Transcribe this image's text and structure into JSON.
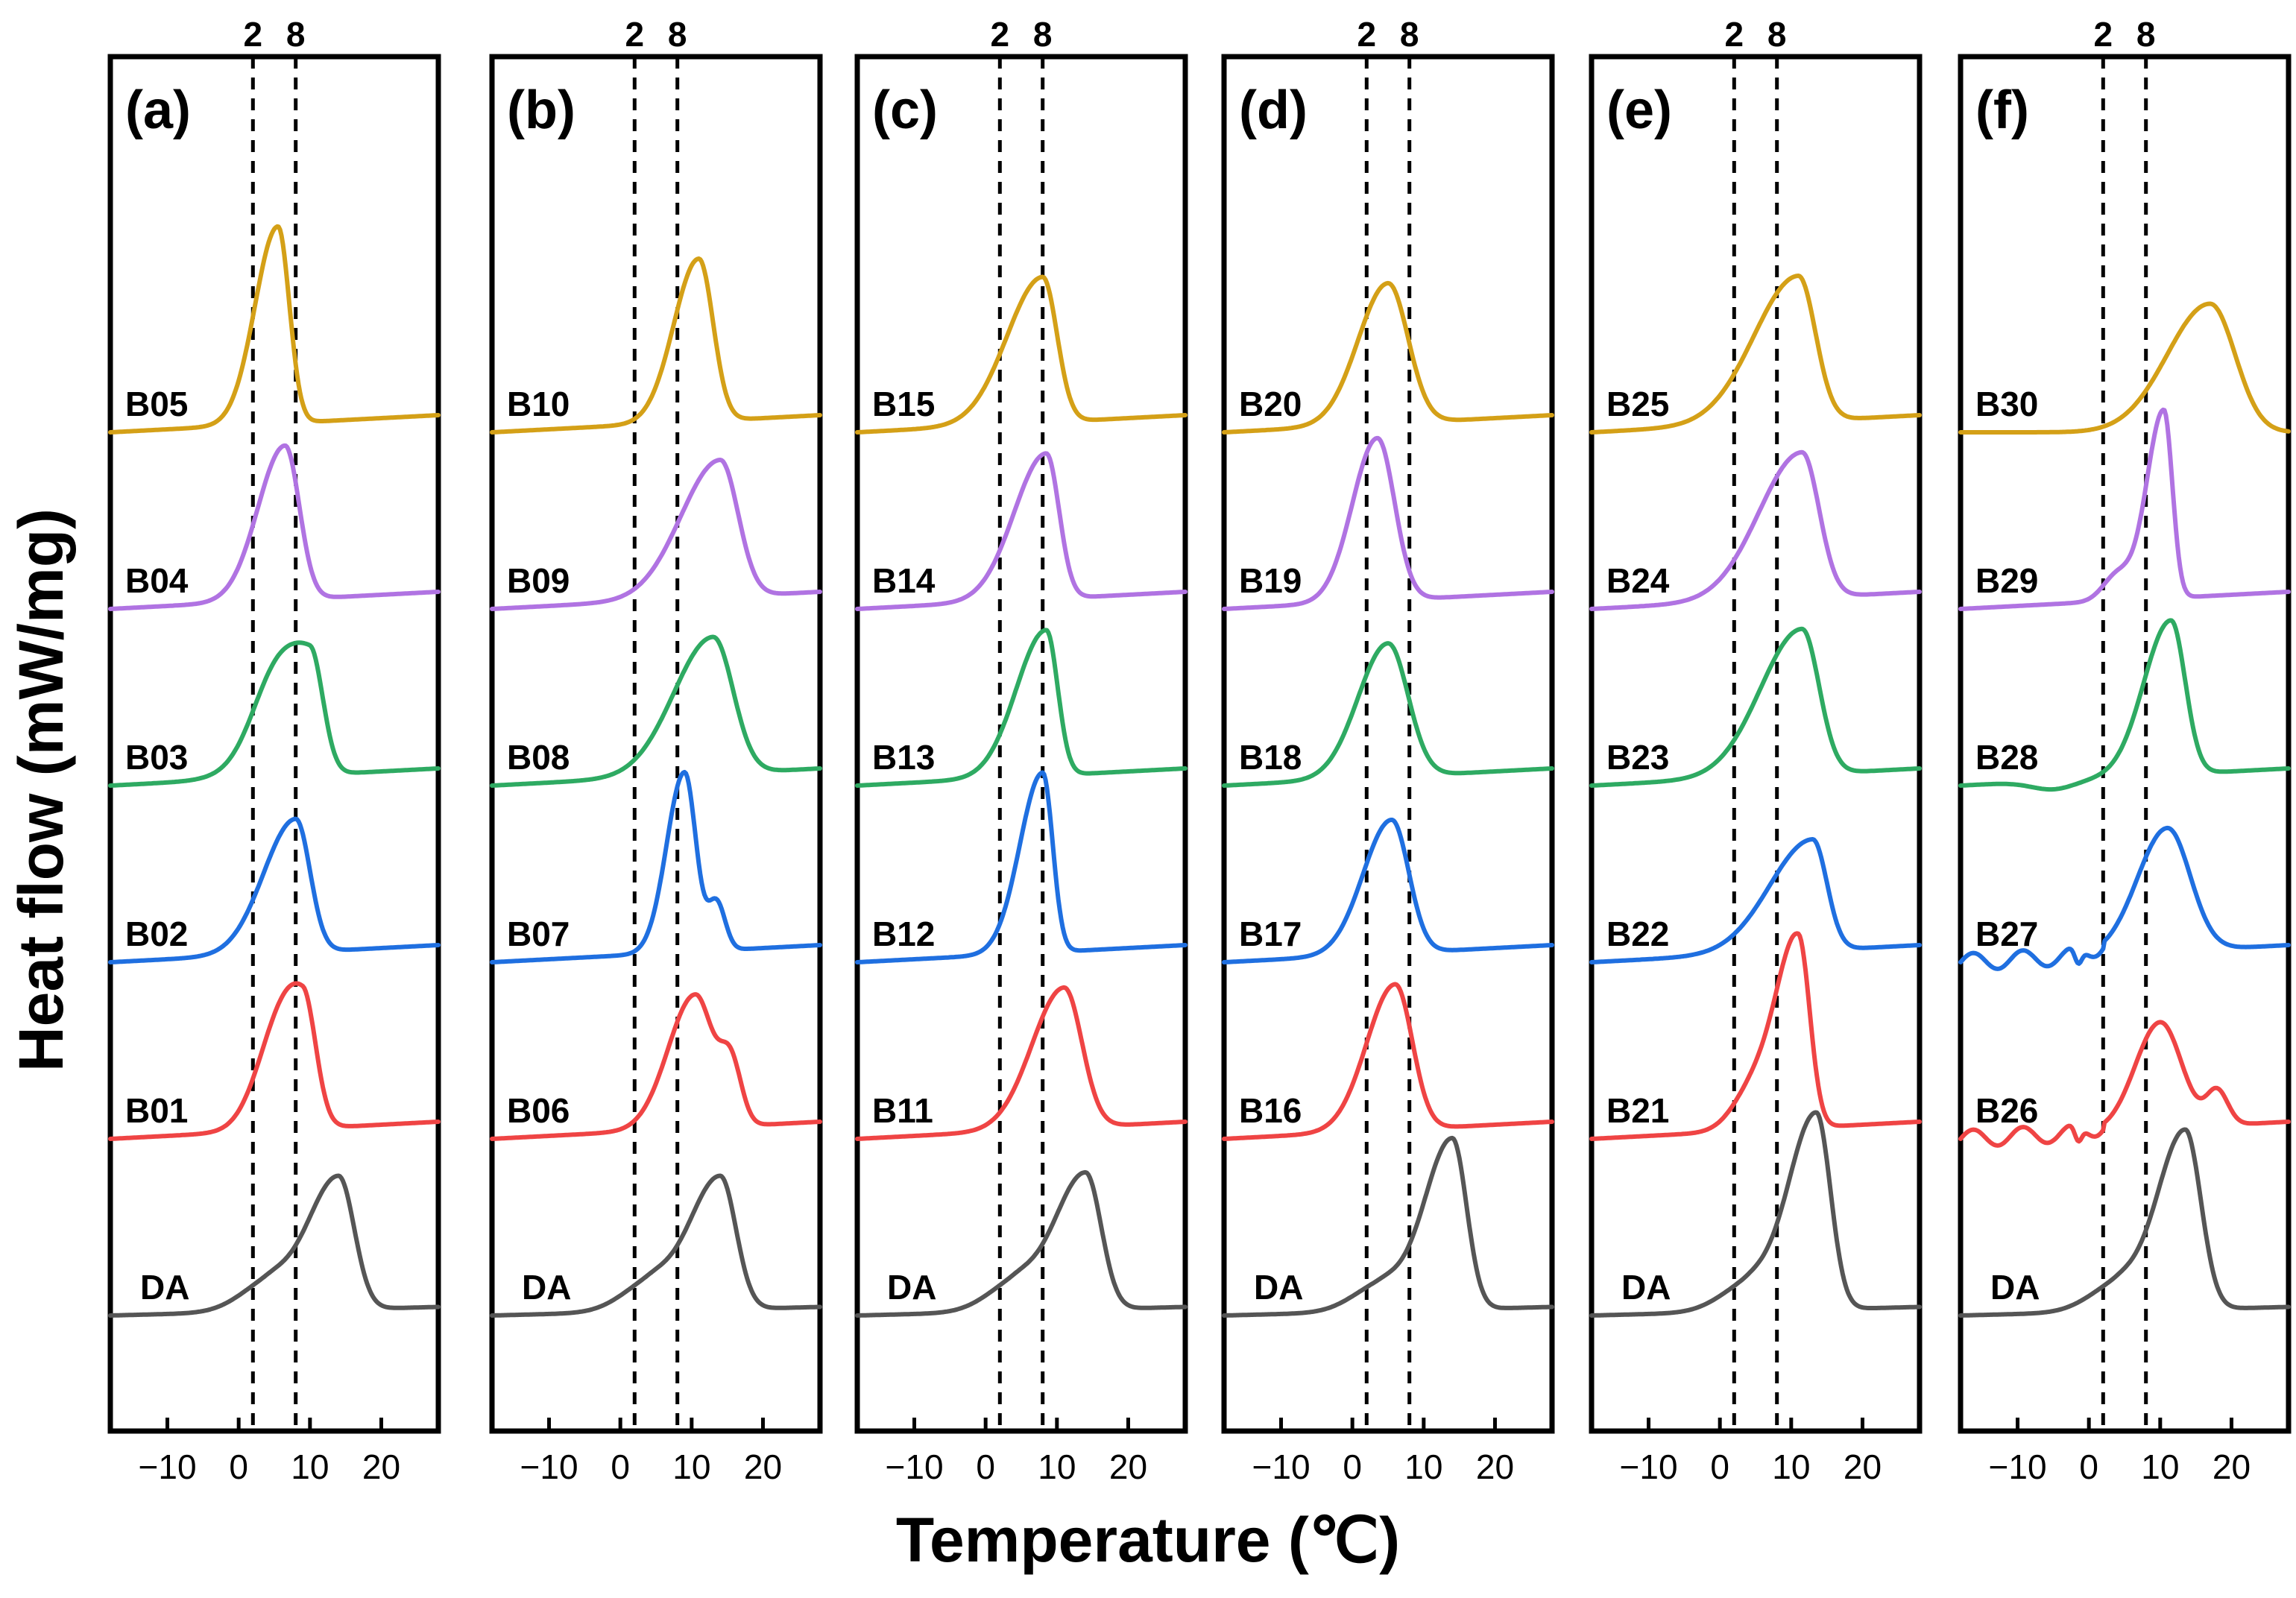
{
  "chart_data": {
    "type": "line",
    "y_axis_label": "Heat flow (mW/mg)",
    "x_axis_label": "Temperature (℃)",
    "xlim": [
      -18,
      28
    ],
    "x_ticks": [
      -10,
      0,
      10,
      20
    ],
    "x_tick_labels": [
      "−10",
      "0",
      "10",
      "20"
    ],
    "reference_lines": [
      2,
      8
    ],
    "reference_line_labels": [
      "2",
      "8"
    ],
    "y_units": "arbitrary offset",
    "series_colors": {
      "DA": "#555555",
      "level1": "#ef4444",
      "level2": "#1f6fe0",
      "level3": "#2eaa62",
      "level4": "#b073e2",
      "level5": "#d4a017"
    },
    "panels": [
      {
        "label": "(a)",
        "series": [
          {
            "name": "DA",
            "color_key": "DA",
            "baseline": 0.0,
            "end": 0.05,
            "peaks": [
              {
                "x": 14,
                "h": 0.78,
                "wl": 4.5,
                "wr": 2.2
              },
              {
                "x": 4,
                "h": 0.15,
                "wl": 4,
                "wr": 3
              }
            ],
            "lead": "flat"
          },
          {
            "name": "B01",
            "color_key": "level1",
            "baseline": 0.95,
            "end": 1.05,
            "peaks": [
              {
                "x": 9,
                "h": 0.75,
                "wl": 4.2,
                "wr": 1.8
              },
              {
                "x": 5,
                "h": 0.2,
                "wl": 3,
                "wr": 3
              }
            ],
            "lead": "flat"
          },
          {
            "name": "B02",
            "color_key": "level2",
            "baseline": 1.95,
            "end": 2.05,
            "peaks": [
              {
                "x": 8,
                "h": 0.78,
                "wl": 4.5,
                "wr": 2.0
              }
            ],
            "lead": "flat"
          },
          {
            "name": "B03",
            "color_key": "level3",
            "baseline": 2.95,
            "end": 3.05,
            "peaks": [
              {
                "x": 10,
                "h": 0.72,
                "wl": 5.5,
                "wr": 1.8
              },
              {
                "x": 4.5,
                "h": 0.2,
                "wl": 3,
                "wr": 3
              }
            ],
            "lead": "flat"
          },
          {
            "name": "B04",
            "color_key": "level4",
            "baseline": 3.95,
            "end": 4.05,
            "peaks": [
              {
                "x": 6.5,
                "h": 0.9,
                "wl": 3.8,
                "wr": 2.0
              }
            ],
            "lead": "flat"
          },
          {
            "name": "B05",
            "color_key": "level5",
            "baseline": 4.95,
            "end": 5.05,
            "peaks": [
              {
                "x": 5.5,
                "h": 1.15,
                "wl": 3.2,
                "wr": 1.6
              }
            ],
            "lead": "flat"
          }
        ]
      },
      {
        "label": "(b)",
        "series": [
          {
            "name": "DA",
            "color_key": "DA",
            "baseline": 0.0,
            "end": 0.05,
            "peaks": [
              {
                "x": 14,
                "h": 0.78,
                "wl": 4.5,
                "wr": 2.2
              },
              {
                "x": 4,
                "h": 0.15,
                "wl": 4,
                "wr": 3
              }
            ],
            "lead": "flat"
          },
          {
            "name": "B06",
            "color_key": "level1",
            "baseline": 0.95,
            "end": 1.05,
            "peaks": [
              {
                "x": 10.5,
                "h": 0.78,
                "wl": 3.8,
                "wr": 2.5
              },
              {
                "x": 15.5,
                "h": 0.35,
                "wl": 1.5,
                "wr": 1.5
              }
            ],
            "lead": "flat"
          },
          {
            "name": "B07",
            "color_key": "level2",
            "baseline": 1.95,
            "end": 2.05,
            "peaks": [
              {
                "x": 9,
                "h": 1.05,
                "wl": 2.5,
                "wr": 1.6
              },
              {
                "x": 13.5,
                "h": 0.28,
                "wl": 1.2,
                "wr": 1.2
              }
            ],
            "lead": "flat"
          },
          {
            "name": "B08",
            "color_key": "level3",
            "baseline": 2.95,
            "end": 3.05,
            "peaks": [
              {
                "x": 13,
                "h": 0.8,
                "wl": 5.5,
                "wr": 2.8
              }
            ],
            "lead": "flat"
          },
          {
            "name": "B09",
            "color_key": "level4",
            "baseline": 3.95,
            "end": 4.05,
            "peaks": [
              {
                "x": 14,
                "h": 0.8,
                "wl": 5.5,
                "wr": 2.5
              }
            ],
            "lead": "flat"
          },
          {
            "name": "B10",
            "color_key": "level5",
            "baseline": 4.95,
            "end": 5.05,
            "peaks": [
              {
                "x": 11,
                "h": 0.95,
                "wl": 3.5,
                "wr": 2.0
              }
            ],
            "lead": "flat"
          }
        ]
      },
      {
        "label": "(c)",
        "series": [
          {
            "name": "DA",
            "color_key": "DA",
            "baseline": 0.0,
            "end": 0.05,
            "peaks": [
              {
                "x": 14,
                "h": 0.8,
                "wl": 4.5,
                "wr": 2.2
              },
              {
                "x": 4,
                "h": 0.15,
                "wl": 4,
                "wr": 3
              }
            ],
            "lead": "flat"
          },
          {
            "name": "B11",
            "color_key": "level1",
            "baseline": 0.95,
            "end": 1.05,
            "peaks": [
              {
                "x": 11,
                "h": 0.82,
                "wl": 4.5,
                "wr": 2.5
              }
            ],
            "lead": "flat"
          },
          {
            "name": "B12",
            "color_key": "level2",
            "baseline": 1.95,
            "end": 2.05,
            "peaks": [
              {
                "x": 8,
                "h": 1.05,
                "wl": 3.2,
                "wr": 1.4
              }
            ],
            "lead": "flat"
          },
          {
            "name": "B13",
            "color_key": "level3",
            "baseline": 2.95,
            "end": 3.05,
            "peaks": [
              {
                "x": 8.5,
                "h": 0.85,
                "wl": 4.2,
                "wr": 1.6
              }
            ],
            "lead": "flat"
          },
          {
            "name": "B14",
            "color_key": "level4",
            "baseline": 3.95,
            "end": 4.05,
            "peaks": [
              {
                "x": 8.5,
                "h": 0.85,
                "wl": 4.5,
                "wr": 1.8
              }
            ],
            "lead": "flat"
          },
          {
            "name": "B15",
            "color_key": "level5",
            "baseline": 4.95,
            "end": 5.05,
            "peaks": [
              {
                "x": 8,
                "h": 0.85,
                "wl": 5.0,
                "wr": 2.0
              }
            ],
            "lead": "flat"
          }
        ]
      },
      {
        "label": "(d)",
        "series": [
          {
            "name": "DA",
            "color_key": "DA",
            "baseline": 0.0,
            "end": 0.05,
            "peaks": [
              {
                "x": 14,
                "h": 1.0,
                "wl": 4.0,
                "wr": 2.0
              },
              {
                "x": 4,
                "h": 0.15,
                "wl": 4,
                "wr": 3
              }
            ],
            "lead": "flat"
          },
          {
            "name": "B16",
            "color_key": "level1",
            "baseline": 0.95,
            "end": 1.05,
            "peaks": [
              {
                "x": 6,
                "h": 0.85,
                "wl": 4.0,
                "wr": 2.4
              }
            ],
            "lead": "flat"
          },
          {
            "name": "B17",
            "color_key": "level2",
            "baseline": 1.95,
            "end": 2.05,
            "peaks": [
              {
                "x": 5.5,
                "h": 0.78,
                "wl": 4.0,
                "wr": 2.4
              }
            ],
            "lead": "flat"
          },
          {
            "name": "B18",
            "color_key": "level3",
            "baseline": 2.95,
            "end": 3.05,
            "peaks": [
              {
                "x": 5,
                "h": 0.78,
                "wl": 4.2,
                "wr": 2.8
              }
            ],
            "lead": "flat"
          },
          {
            "name": "B19",
            "color_key": "level4",
            "baseline": 3.95,
            "end": 4.05,
            "peaks": [
              {
                "x": 3.5,
                "h": 0.95,
                "wl": 3.5,
                "wr": 2.4
              }
            ],
            "lead": "flat"
          },
          {
            "name": "B20",
            "color_key": "level5",
            "baseline": 4.95,
            "end": 5.05,
            "peaks": [
              {
                "x": 5,
                "h": 0.82,
                "wl": 4.2,
                "wr": 2.8
              }
            ],
            "lead": "flat"
          }
        ]
      },
      {
        "label": "(e)",
        "series": [
          {
            "name": "DA",
            "color_key": "DA",
            "baseline": 0.0,
            "end": 0.05,
            "peaks": [
              {
                "x": 13.5,
                "h": 1.15,
                "wl": 4.0,
                "wr": 2.0
              },
              {
                "x": 4,
                "h": 0.15,
                "wl": 4,
                "wr": 3
              }
            ],
            "lead": "flat"
          },
          {
            "name": "B21",
            "color_key": "level1",
            "baseline": 0.95,
            "end": 1.05,
            "peaks": [
              {
                "x": 11,
                "h": 1.1,
                "wl": 3.0,
                "wr": 1.6
              },
              {
                "x": 5,
                "h": 0.25,
                "wl": 3,
                "wr": 3
              }
            ],
            "lead": "flat"
          },
          {
            "name": "B22",
            "color_key": "level2",
            "baseline": 1.95,
            "end": 2.05,
            "peaks": [
              {
                "x": 13,
                "h": 0.65,
                "wl": 6.0,
                "wr": 2.0
              }
            ],
            "lead": "flat"
          },
          {
            "name": "B23",
            "color_key": "level3",
            "baseline": 2.95,
            "end": 3.05,
            "peaks": [
              {
                "x": 11.5,
                "h": 0.85,
                "wl": 5.8,
                "wr": 2.4
              }
            ],
            "lead": "flat"
          },
          {
            "name": "B24",
            "color_key": "level4",
            "baseline": 3.95,
            "end": 4.05,
            "peaks": [
              {
                "x": 11.5,
                "h": 0.85,
                "wl": 6.0,
                "wr": 2.4
              }
            ],
            "lead": "flat"
          },
          {
            "name": "B25",
            "color_key": "level5",
            "baseline": 4.95,
            "end": 5.05,
            "peaks": [
              {
                "x": 11,
                "h": 0.85,
                "wl": 6.2,
                "wr": 2.4
              }
            ],
            "lead": "flat"
          }
        ]
      },
      {
        "label": "(f)",
        "series": [
          {
            "name": "DA",
            "color_key": "DA",
            "baseline": 0.0,
            "end": 0.05,
            "peaks": [
              {
                "x": 13.5,
                "h": 1.05,
                "wl": 4.0,
                "wr": 2.2
              },
              {
                "x": 4,
                "h": 0.15,
                "wl": 4,
                "wr": 3
              }
            ],
            "lead": "flat"
          },
          {
            "name": "B26",
            "color_key": "level1",
            "baseline": 0.95,
            "end": 1.05,
            "peaks": [
              {
                "x": 10,
                "h": 0.62,
                "wl": 3.5,
                "wr": 3.0
              },
              {
                "x": 18,
                "h": 0.2,
                "wl": 1.5,
                "wr": 1.5
              }
            ],
            "lead": "dips"
          },
          {
            "name": "B27",
            "color_key": "level2",
            "baseline": 1.95,
            "end": 2.05,
            "peaks": [
              {
                "x": 11,
                "h": 0.72,
                "wl": 4.2,
                "wr": 3.2
              }
            ],
            "lead": "dips"
          },
          {
            "name": "B28",
            "color_key": "level3",
            "baseline": 2.95,
            "end": 3.05,
            "peaks": [
              {
                "x": 11.5,
                "h": 0.9,
                "wl": 3.8,
                "wr": 2.0
              }
            ],
            "lead": "dip"
          },
          {
            "name": "B29",
            "color_key": "level4",
            "baseline": 3.95,
            "end": 4.05,
            "peaks": [
              {
                "x": 10.5,
                "h": 1.1,
                "wl": 2.4,
                "wr": 1.2
              },
              {
                "x": 4,
                "h": 0.15,
                "wl": 2,
                "wr": 2
              }
            ],
            "lead": "flat"
          },
          {
            "name": "B30",
            "color_key": "level5",
            "baseline": 4.95,
            "end": 4.95,
            "peaks": [
              {
                "x": 17,
                "h": 0.75,
                "wl": 6.0,
                "wr": 3.5
              }
            ],
            "lead": "flat"
          }
        ]
      }
    ]
  }
}
